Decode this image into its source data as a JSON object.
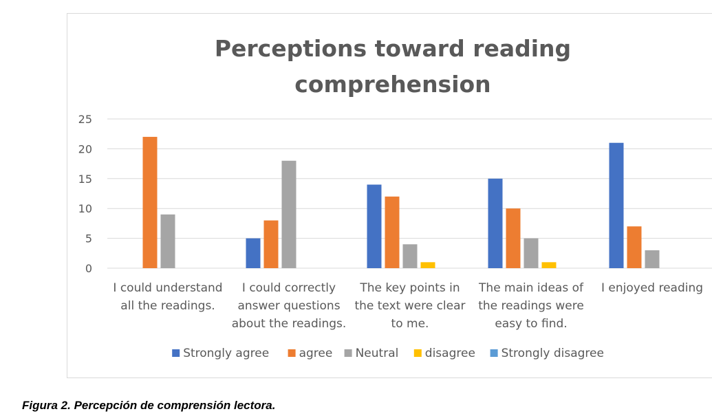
{
  "chart_data": {
    "type": "bar",
    "title": [
      "Perceptions toward reading",
      "comprehension"
    ],
    "categories": [
      [
        "I could understand",
        "all the readings."
      ],
      [
        "I could correctly",
        "answer questions",
        "about the readings."
      ],
      [
        "The key points in",
        "the text were clear",
        "to me."
      ],
      [
        "The main ideas of",
        "the readings were",
        "easy to find."
      ],
      [
        "I enjoyed reading"
      ]
    ],
    "series": [
      {
        "name": "Strongly agree",
        "color": "#4472C4",
        "values": [
          0,
          5,
          14,
          15,
          21
        ]
      },
      {
        "name": "agree",
        "color": "#ED7D31",
        "values": [
          22,
          8,
          12,
          10,
          7
        ]
      },
      {
        "name": "Neutral",
        "color": "#A5A5A5",
        "values": [
          9,
          18,
          4,
          5,
          3
        ]
      },
      {
        "name": "disagree",
        "color": "#FFC000",
        "values": [
          0,
          0,
          1,
          1,
          0
        ]
      },
      {
        "name": "Strongly disagree",
        "color": "#5B9BD5",
        "values": [
          0,
          0,
          0,
          0,
          0
        ]
      }
    ],
    "yticks": [
      0,
      5,
      10,
      15,
      20,
      25
    ],
    "ylim": [
      0,
      25
    ],
    "grid": true,
    "legend": "bottom"
  },
  "caption": "Figura 2. Percepción de comprensión lectora."
}
